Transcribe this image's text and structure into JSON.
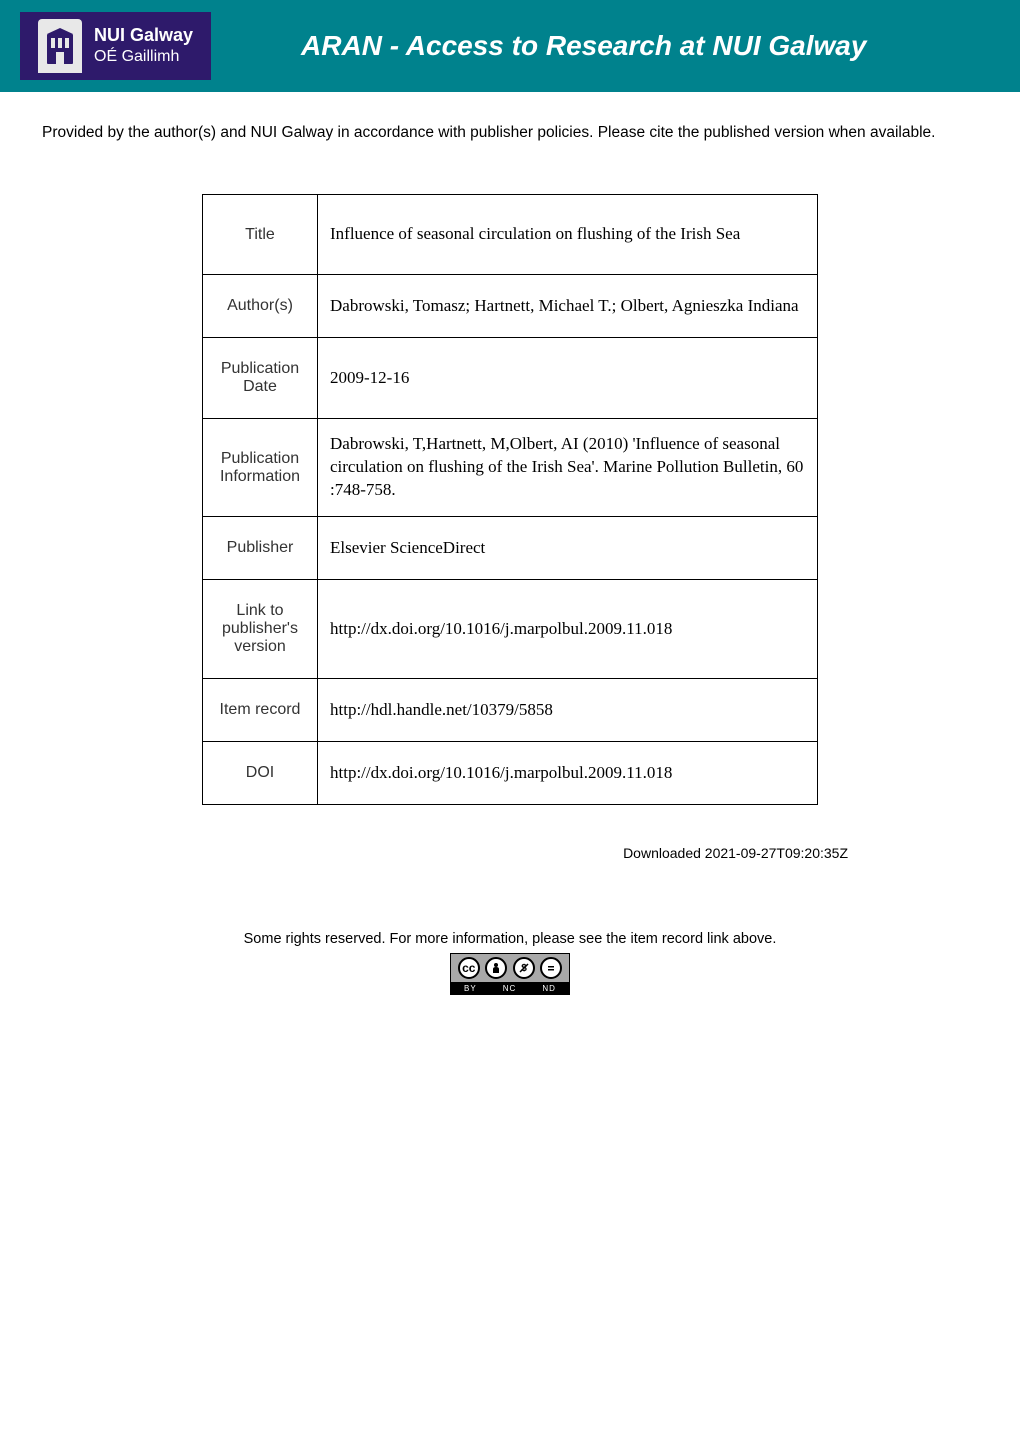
{
  "header": {
    "logo": {
      "line1": "NUI Galway",
      "line2": "OÉ Gaillimh"
    },
    "title": "ARAN - Access to Research at NUI Galway",
    "bar_color": "#00828d",
    "logo_bg": "#2e1a6b"
  },
  "intro": "Provided by the author(s) and NUI Galway in accordance with publisher policies. Please cite the published version when available.",
  "metadata": {
    "rows": [
      {
        "label": "Title",
        "value": "Influence of seasonal circulation on flushing of the Irish Sea"
      },
      {
        "label": "Author(s)",
        "value": "Dabrowski, Tomasz; Hartnett, Michael T.; Olbert, Agnieszka Indiana"
      },
      {
        "label": "Publication Date",
        "value": "2009-12-16"
      },
      {
        "label": "Publication Information",
        "value": "Dabrowski, T,Hartnett, M,Olbert, AI (2010) 'Influence of seasonal circulation on flushing of the Irish Sea'.  Marine Pollution Bulletin, 60 :748-758."
      },
      {
        "label": "Publisher",
        "value": "Elsevier ScienceDirect"
      },
      {
        "label": "Link to publisher's version",
        "value": "http://dx.doi.org/10.1016/j.marpolbul.2009.11.018"
      },
      {
        "label": "Item record",
        "value": "http://hdl.handle.net/10379/5858"
      },
      {
        "label": "DOI",
        "value": "http://dx.doi.org/10.1016/j.marpolbul.2009.11.018"
      }
    ]
  },
  "downloaded": "Downloaded 2021-09-27T09:20:35Z",
  "rights_text": "Some rights reserved. For more information, please see the item record link above.",
  "cc": {
    "icons": [
      "cc",
      "①",
      "⊘",
      "⊜"
    ],
    "labels": [
      "BY",
      "NC",
      "ND"
    ]
  }
}
